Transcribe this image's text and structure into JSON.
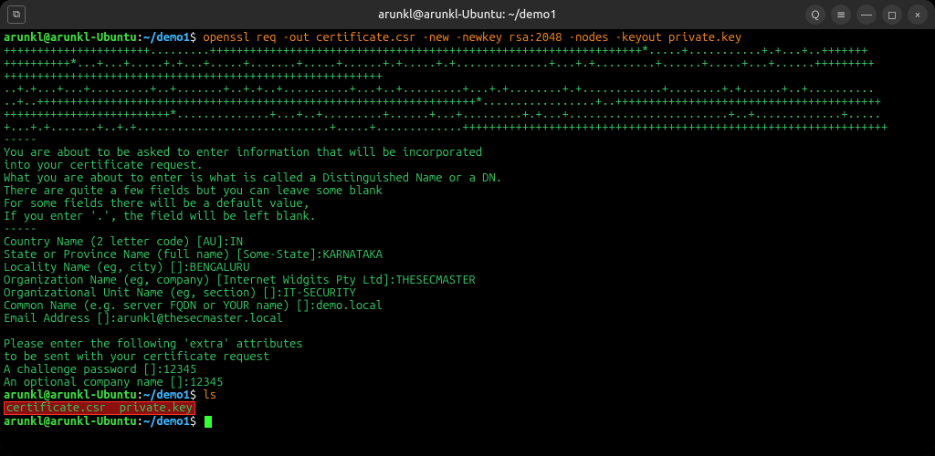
{
  "titlebar": {
    "title": "arunkl@arunkl-Ubuntu: ~/demo1",
    "terminal_glyph": "⧉",
    "search_glyph": "Q",
    "menu_glyph": "≡",
    "min_glyph": "—",
    "max_glyph": "◻",
    "close_glyph": "×"
  },
  "colors": {
    "prompt_user": "#40e040",
    "prompt_cwd": "#3cb8ff",
    "prompt_sep": "#ffffff",
    "command": "#ff8c1a",
    "output": "#33cc66",
    "highlight_bg": "rgba(255,30,30,0.55)",
    "highlight_border": "#ff3030",
    "cursor": "#33ff33",
    "term_bg": "#000000",
    "titlebar_bg": "#2a2a2a"
  },
  "prompt": {
    "user_host": "arunkl@arunkl-Ubuntu",
    "sep": ":",
    "cwd": "~/demo1",
    "dollar": "$"
  },
  "cmd1": "openssl req -out certificate.csr -new -newkey rsa:2048 -nodes -keyout private.key",
  "cmd2": "ls",
  "keygen_rows": [
    "++++++++++++++++++++++.........+++++++++++++++++++++++++++++++++++++++++++++++++++++++++++++++++*.....+...........+.+...+..+++++++",
    "++++++++++*...+...+.....+.+...+.....+.......+.....+......+.+.....+.+..............+...+.+.........+......+.....+...+......+++++++++",
    "+++++++++++++++++++++++++++++++++++++++++++++++++++++++++",
    "..+.+...+...+.........+..+.......+..+.+..+..........+...+..+.........+...+.+........+.+............+........+.+......+..+..........",
    "..+..++++++++++++++++++++++++++++++++++++++++++++++++++++++++++++++++++*.................+..++++++++++++++++++++++++++++++++++++++++",
    "+++++++++++++++++++++++++*..............+...+..+.........+......+...+.........+.+...+........................+..+.............+.....",
    "+...+.+.......+..+.+.............................+.....+.............++++++++++++++++++++++++++++++++++++++++++++++++++++++++++++++++",
    "-----"
  ],
  "intro": [
    "You are about to be asked to enter information that will be incorporated",
    "into your certificate request.",
    "What you are about to enter is what is called a Distinguished Name or a DN.",
    "There are quite a few fields but you can leave some blank",
    "For some fields there will be a default value,",
    "If you enter '.', the field will be left blank.",
    "-----"
  ],
  "fields": [
    "Country Name (2 letter code) [AU]:IN",
    "State or Province Name (full name) [Some-State]:KARNATAKA",
    "Locality Name (eg, city) []:BENGALURU",
    "Organization Name (eg, company) [Internet Widgits Pty Ltd]:THESECMASTER",
    "Organizational Unit Name (eg, section) []:IT-SECURITY",
    "Common Name (e.g. server FQDN or YOUR name) []:demo.local",
    "Email Address []:arunkl@thesecmaster.local"
  ],
  "extra": [
    "",
    "Please enter the following 'extra' attributes",
    "to be sent with your certificate request",
    "A challenge password []:12345",
    "An optional company name []:12345"
  ],
  "ls_output": "certificate.csr  private.key"
}
